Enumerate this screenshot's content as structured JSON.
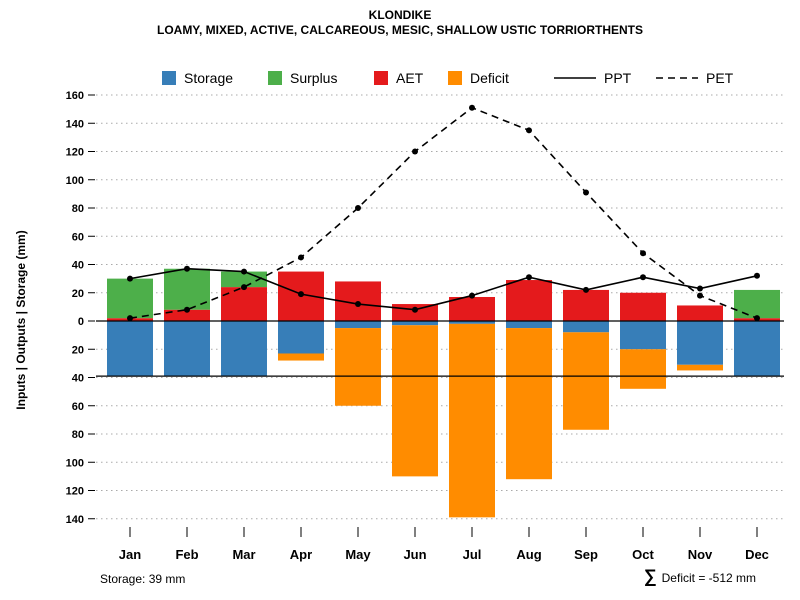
{
  "title": "KLONDIKE",
  "subtitle": "LOAMY, MIXED, ACTIVE, CALCAREOUS, MESIC, SHALLOW USTIC TORRIORTHENTS",
  "footer": {
    "storage_note": "Storage: 39 mm",
    "deficit_sigma": "∑",
    "deficit_note": "Deficit = -512 mm"
  },
  "legend": {
    "items": [
      {
        "label": "Storage",
        "marker": "box",
        "color": "#377eb8"
      },
      {
        "label": "Surplus",
        "marker": "box",
        "color": "#4daf4a"
      },
      {
        "label": "AET",
        "marker": "box",
        "color": "#e41a1c"
      },
      {
        "label": "Deficit",
        "marker": "box",
        "color": "#ff8c00"
      },
      {
        "label": "PPT",
        "marker": "line-solid",
        "color": "#000000"
      },
      {
        "label": "PET",
        "marker": "line-dashed",
        "color": "#000000"
      }
    ]
  },
  "chart_data": {
    "type": "bar",
    "title": "KLONDIKE",
    "subtitle": "LOAMY, MIXED, ACTIVE, CALCAREOUS, MESIC, SHALLOW USTIC TORRIORTHENTS",
    "ylabel": "Inputs | Outputs | Storage   (mm)",
    "xlabel": "",
    "categories": [
      "Jan",
      "Feb",
      "Mar",
      "Apr",
      "May",
      "Jun",
      "Jul",
      "Aug",
      "Sep",
      "Oct",
      "Nov",
      "Dec"
    ],
    "y_ticks": [
      160,
      140,
      120,
      100,
      80,
      60,
      40,
      20,
      0,
      -20,
      -40,
      -60,
      -80,
      -100,
      -120,
      -140
    ],
    "ylim": [
      -150,
      165
    ],
    "grid": "dotted",
    "legend_position": "top",
    "storage_capacity_line": 39,
    "annotations": {
      "storage": "Storage: 39 mm",
      "deficit_sum": "∑ Deficit = -512 mm"
    },
    "series": [
      {
        "name": "AET",
        "kind": "bar",
        "direction": "up",
        "stack_order": 0,
        "color": "#e41a1c",
        "values": [
          2,
          8,
          24,
          35,
          28,
          12,
          17,
          29,
          22,
          20,
          11,
          2
        ]
      },
      {
        "name": "Surplus",
        "kind": "bar",
        "direction": "up",
        "stack_order": 1,
        "color": "#4daf4a",
        "values": [
          28,
          29,
          11,
          0,
          0,
          0,
          0,
          0,
          0,
          0,
          0,
          20
        ]
      },
      {
        "name": "Storage",
        "kind": "bar",
        "direction": "down",
        "stack_order": 0,
        "color": "#377eb8",
        "values": [
          39,
          39,
          39,
          23,
          5,
          3,
          2,
          5,
          8,
          20,
          31,
          39
        ]
      },
      {
        "name": "Deficit",
        "kind": "bar",
        "direction": "down",
        "stack_order": 1,
        "color": "#ff8c00",
        "values": [
          0,
          0,
          0,
          5,
          55,
          107,
          137,
          107,
          69,
          28,
          4,
          0
        ]
      },
      {
        "name": "PPT",
        "kind": "line",
        "line_style": "solid",
        "color": "#000000",
        "values": [
          30,
          37,
          35,
          19,
          12,
          8,
          18,
          31,
          22,
          31,
          23,
          32
        ]
      },
      {
        "name": "PET",
        "kind": "line",
        "line_style": "dashed",
        "color": "#000000",
        "values": [
          2,
          8,
          24,
          45,
          80,
          120,
          151,
          135,
          91,
          48,
          18,
          2
        ]
      }
    ]
  }
}
